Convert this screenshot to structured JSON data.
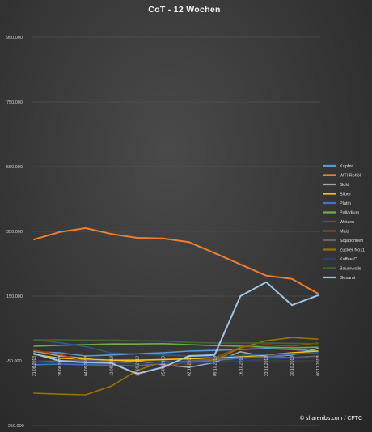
{
  "chart_data": {
    "type": "line",
    "title": "CoT - 12 Wochen",
    "xlabel": "",
    "ylabel": "",
    "ylim": [
      -250000,
      950000
    ],
    "yticks": [
      "950.000",
      "750.000",
      "550.000",
      "350.000",
      "150.000",
      "-50.000",
      "-250.000"
    ],
    "ytick_values": [
      950000,
      750000,
      550000,
      350000,
      150000,
      -50000,
      -250000
    ],
    "grid": true,
    "legend_position": "right",
    "x": [
      "21.08.2018",
      "28.08.2018",
      "04.09.2018",
      "11.09.2018",
      "18.09.2018",
      "25.09.2018",
      "02.10.2018",
      "09.10.2018",
      "16.10.2018",
      "23.10.2018",
      "30.10.2018",
      "06.11.2018"
    ],
    "x_visible_labels": [
      "21.08.2018",
      "28.08.2018",
      "04.09.2018",
      "11.09.2018",
      "18.09.2018",
      "25.09.2018",
      "02.10.2018",
      "09.10.2018",
      "16.10.2018",
      "23.10.2018",
      "30.10.2018",
      "06.11.2018"
    ],
    "series": [
      {
        "name": "Kupfer",
        "color": "#5b9bd5",
        "values": [
          -22000,
          -25000,
          -35000,
          -32000,
          -28000,
          -25000,
          -20000,
          -18000,
          -15000,
          -12000,
          -15000,
          -20000
        ]
      },
      {
        "name": "WTI Rohöl",
        "color": "#ed7d31",
        "values": [
          325000,
          348000,
          360000,
          342000,
          330000,
          328000,
          317000,
          283000,
          248000,
          213000,
          203000,
          158000
        ]
      },
      {
        "name": "Gold",
        "color": "#a5a5a5",
        "values": [
          -20000,
          -35000,
          -42000,
          -55000,
          -50000,
          -62000,
          -70000,
          -55000,
          -22000,
          -38000,
          -32000,
          -12000
        ]
      },
      {
        "name": "Silber",
        "color": "#ffc000",
        "values": [
          -30000,
          -42000,
          -45000,
          -48000,
          -48000,
          -46000,
          -44000,
          -40000,
          -38000,
          -32000,
          -25000,
          -20000
        ]
      },
      {
        "name": "Platin",
        "color": "#4472c4",
        "values": [
          -62000,
          -60000,
          -62000,
          -64000,
          -66000,
          -58000,
          -55000,
          -48000,
          -42000,
          -38000,
          -30000,
          -25000
        ]
      },
      {
        "name": "Palladium",
        "color": "#70ad47",
        "values": [
          -5000,
          -2000,
          0,
          2000,
          2000,
          3000,
          0,
          -3000,
          -5000,
          -8000,
          -10000,
          -8000
        ]
      },
      {
        "name": "Weizen",
        "color": "#255e91",
        "values": [
          15000,
          6000,
          -6000,
          -26000,
          -28000,
          -32000,
          -35000,
          -38000,
          -34000,
          -30000,
          -28000,
          -25000
        ]
      },
      {
        "name": "Mais",
        "color": "#9e480e",
        "values": [
          -18000,
          -30000,
          -52000,
          -58000,
          -92000,
          -70000,
          -52000,
          -40000,
          -8000,
          0,
          -5000,
          5000
        ]
      },
      {
        "name": "Sojabohnen",
        "color": "#636363",
        "values": [
          -55000,
          -50000,
          -48000,
          -52000,
          -60000,
          -58000,
          -50000,
          -45000,
          -40000,
          -38000,
          -40000,
          -35000
        ]
      },
      {
        "name": "Zucker No11",
        "color": "#997300",
        "values": [
          -150000,
          -153000,
          -155000,
          -128000,
          -80000,
          -52000,
          -60000,
          -48000,
          -10000,
          12000,
          22000,
          17000
        ]
      },
      {
        "name": "Kaffee C",
        "color": "#264478",
        "values": [
          -55000,
          -56000,
          -58000,
          -58000,
          -60000,
          -56000,
          -58000,
          -55000,
          -50000,
          -45000,
          -42000,
          -40000
        ]
      },
      {
        "name": "Baumwolle",
        "color": "#43682b",
        "values": [
          15000,
          15000,
          14000,
          14000,
          12000,
          11000,
          7000,
          5000,
          5000,
          5000,
          4000,
          3000
        ]
      },
      {
        "name": "Gesamt",
        "color": "#9dc3e6",
        "values": [
          -28000,
          -50000,
          -55000,
          -57000,
          -90000,
          -70000,
          -35000,
          -32000,
          150000,
          193000,
          122000,
          152000
        ]
      }
    ]
  },
  "source_text": "© sharenibs.com / CFTC"
}
